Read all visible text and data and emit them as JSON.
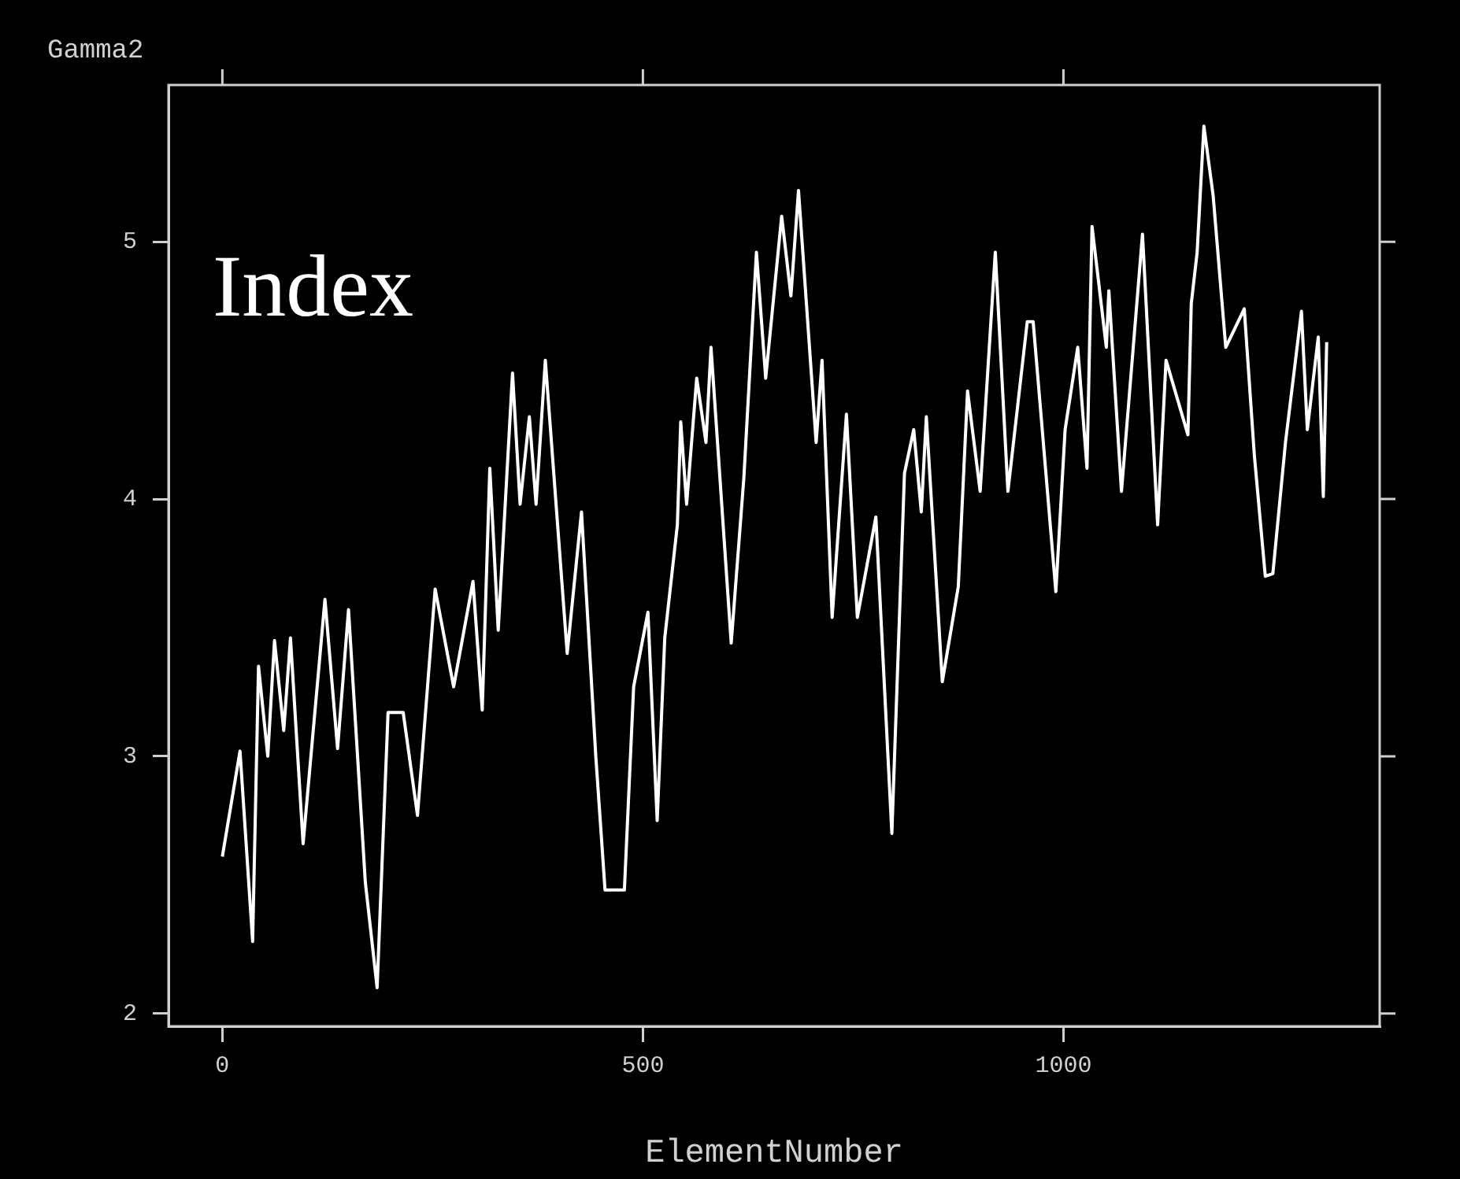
{
  "chart_data": {
    "type": "line",
    "xlabel": "ElementNumber",
    "ylabel": "Gamma2",
    "annotations": [
      "Index"
    ],
    "x": [
      0,
      21,
      36,
      43,
      54,
      62,
      73,
      81,
      96,
      122,
      137,
      150,
      170,
      184,
      197,
      215,
      232,
      253,
      275,
      298,
      309,
      318,
      328,
      345,
      354,
      365,
      373,
      384,
      410,
      427,
      444,
      455,
      463,
      478,
      489,
      506,
      517,
      526,
      541,
      545,
      552,
      564,
      575,
      581,
      605,
      620,
      635,
      646,
      665,
      676,
      685,
      706,
      713,
      725,
      742,
      755,
      777,
      796,
      811,
      822,
      831,
      837,
      856,
      875,
      886,
      901,
      919,
      934,
      957,
      964,
      991,
      1002,
      1017,
      1028,
      1034,
      1051,
      1054,
      1069,
      1094,
      1112,
      1122,
      1148,
      1152,
      1159,
      1167,
      1178,
      1193,
      1215,
      1227,
      1240,
      1249,
      1264,
      1283,
      1290,
      1303,
      1309,
      1313
    ],
    "series": [
      {
        "color": "#ffffff",
        "values": [
          2.61,
          3.02,
          2.28,
          3.35,
          3.0,
          3.45,
          3.1,
          3.46,
          2.66,
          3.61,
          3.03,
          3.57,
          2.51,
          2.1,
          3.17,
          3.17,
          2.77,
          3.65,
          3.27,
          3.68,
          3.18,
          4.12,
          3.49,
          4.49,
          3.98,
          4.32,
          3.98,
          4.54,
          3.4,
          3.95,
          3.0,
          2.48,
          2.48,
          2.48,
          3.27,
          3.56,
          2.75,
          3.46,
          3.9,
          4.3,
          3.98,
          4.47,
          4.22,
          4.59,
          3.44,
          4.08,
          4.96,
          4.47,
          5.1,
          4.79,
          5.2,
          4.22,
          4.54,
          3.54,
          4.33,
          3.54,
          3.93,
          2.7,
          4.1,
          4.27,
          3.95,
          4.32,
          3.29,
          3.66,
          4.42,
          4.03,
          4.96,
          4.03,
          4.69,
          4.69,
          3.64,
          4.27,
          4.59,
          4.12,
          5.06,
          4.59,
          4.81,
          4.03,
          5.03,
          3.9,
          4.54,
          4.25,
          4.76,
          4.96,
          5.45,
          5.18,
          4.59,
          4.74,
          4.17,
          3.7,
          3.71,
          4.22,
          4.73,
          4.27,
          4.63,
          4.01,
          4.61
        ]
      }
    ],
    "xlim": [
      -64,
      1376
    ],
    "ylim": [
      1.95,
      5.61
    ],
    "xticks": [
      0,
      500,
      1000
    ],
    "yticks": [
      2,
      3,
      4,
      5
    ],
    "grid": false,
    "legend": false,
    "marker": "none"
  }
}
